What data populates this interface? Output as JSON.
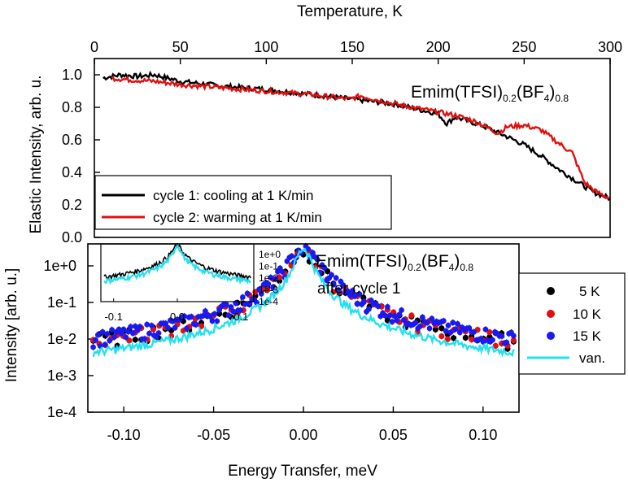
{
  "chart_data": [
    {
      "type": "line",
      "title": "Emim(TFSI)0.2(BF4)0.8",
      "title_parts": {
        "base": "Emim(TFSI)",
        "sub1": "0.2",
        "mid": "(BF",
        "sub2": "4",
        "end": ")",
        "sub3": "0.8"
      },
      "xlabel": "Temperature, K",
      "ylabel": "Elastic Intensity, arb. u.",
      "xlim": [
        0,
        300
      ],
      "ylim": [
        0.0,
        1.1
      ],
      "xticks": [
        "0",
        "50",
        "100",
        "150",
        "200",
        "250",
        "300"
      ],
      "yticks": [
        "0.0",
        "0.2",
        "0.4",
        "0.6",
        "0.8",
        "1.0"
      ],
      "series": [
        {
          "name": "cycle 1: cooling at 1 K/min",
          "color": "#000000",
          "points": [
            [
              5,
              0.98
            ],
            [
              15,
              1.0
            ],
            [
              25,
              0.99
            ],
            [
              35,
              1.0
            ],
            [
              50,
              0.96
            ],
            [
              75,
              0.93
            ],
            [
              100,
              0.91
            ],
            [
              125,
              0.88
            ],
            [
              150,
              0.85
            ],
            [
              175,
              0.82
            ],
            [
              200,
              0.76
            ],
            [
              205,
              0.7
            ],
            [
              210,
              0.74
            ],
            [
              225,
              0.69
            ],
            [
              240,
              0.62
            ],
            [
              250,
              0.57
            ],
            [
              260,
              0.5
            ],
            [
              270,
              0.42
            ],
            [
              280,
              0.35
            ],
            [
              290,
              0.28
            ],
            [
              300,
              0.24
            ]
          ]
        },
        {
          "name": "cycle 2: warming at 1 K/min",
          "color": "#e01010",
          "points": [
            [
              10,
              0.98
            ],
            [
              20,
              0.97
            ],
            [
              35,
              0.96
            ],
            [
              50,
              0.94
            ],
            [
              75,
              0.92
            ],
            [
              100,
              0.9
            ],
            [
              125,
              0.88
            ],
            [
              148,
              0.85
            ],
            [
              155,
              0.87
            ],
            [
              175,
              0.82
            ],
            [
              200,
              0.77
            ],
            [
              210,
              0.75
            ],
            [
              220,
              0.72
            ],
            [
              228,
              0.68
            ],
            [
              235,
              0.64
            ],
            [
              240,
              0.68
            ],
            [
              250,
              0.69
            ],
            [
              260,
              0.66
            ],
            [
              270,
              0.58
            ],
            [
              278,
              0.52
            ],
            [
              285,
              0.34
            ],
            [
              292,
              0.28
            ],
            [
              300,
              0.24
            ]
          ]
        }
      ]
    },
    {
      "type": "scatter",
      "title": "Emim(TFSI)0.2(BF4)0.8",
      "title_parts": {
        "base": "Emim(TFSI)",
        "sub1": "0.2",
        "mid": "(BF",
        "sub2": "4",
        "end": ")",
        "sub3": "0.8"
      },
      "subtitle": "after cycle 1",
      "xlabel": "Energy Transfer, meV",
      "ylabel": "Intensity [arb. u.]",
      "xlim": [
        -0.12,
        0.12
      ],
      "ylim_log10": [
        -4,
        0.6
      ],
      "xticks": [
        "-0.10",
        "-0.05",
        "0.00",
        "0.05",
        "0.10"
      ],
      "yticks": [
        "1e-4",
        "1e-3",
        "1e-2",
        "1e-1",
        "1e+0"
      ],
      "series": [
        {
          "name": "5 K",
          "color": "#000000",
          "marker": "circle",
          "peak": 3.0,
          "background": 0.0009,
          "width": 0.006
        },
        {
          "name": "10 K",
          "color": "#e01010",
          "marker": "circle",
          "peak": 3.0,
          "background": 0.00085,
          "width": 0.006
        },
        {
          "name": "15 K",
          "color": "#1a1aee",
          "marker": "circle",
          "peak": 3.0,
          "background": 0.001,
          "width": 0.0065
        },
        {
          "name": "van.",
          "color": "#22e0f0",
          "marker": "line",
          "peak": 3.0,
          "background": 0.0006,
          "width": 0.004
        }
      ],
      "inset": {
        "xlim": [
          -0.12,
          0.12
        ],
        "xticks": [
          "-0.1",
          "0.0",
          "0.1"
        ],
        "yticks": [
          "1e+0",
          "1e-1",
          "1e-2",
          "1e-3",
          "1e-4"
        ]
      }
    }
  ]
}
